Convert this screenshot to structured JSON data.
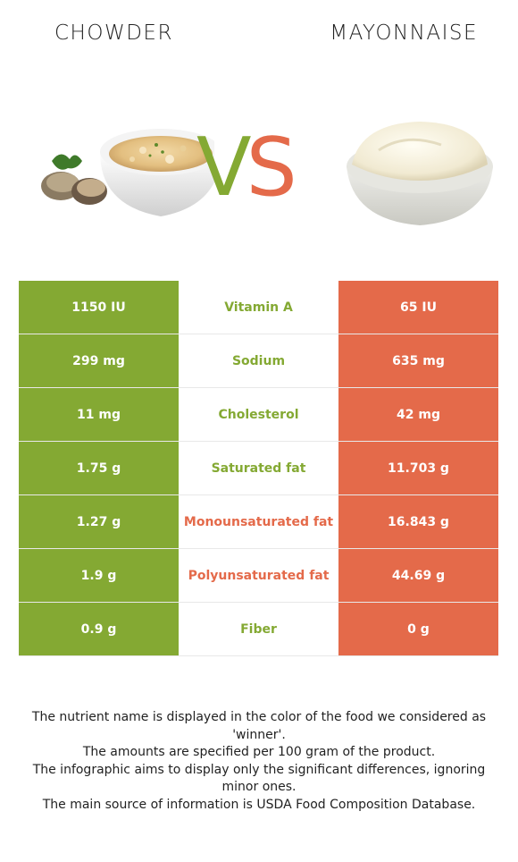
{
  "foods": {
    "left": "CHOWDER",
    "right": "MAYONNAISE"
  },
  "vs": {
    "v": "V",
    "s": "S"
  },
  "colors": {
    "left_winner": "#84a933",
    "right_winner": "#e46a4a"
  },
  "nutrients": [
    {
      "name": "Vitamin A",
      "left": "1150 IU",
      "right": "65 IU",
      "winner": "left"
    },
    {
      "name": "Sodium",
      "left": "299 mg",
      "right": "635 mg",
      "winner": "left"
    },
    {
      "name": "Cholesterol",
      "left": "11 mg",
      "right": "42 mg",
      "winner": "left"
    },
    {
      "name": "Saturated fat",
      "left": "1.75 g",
      "right": "11.703 g",
      "winner": "left"
    },
    {
      "name": "Monounsaturated fat",
      "left": "1.27 g",
      "right": "16.843 g",
      "winner": "right"
    },
    {
      "name": "Polyunsaturated fat",
      "left": "1.9 g",
      "right": "44.69 g",
      "winner": "right"
    },
    {
      "name": "Fiber",
      "left": "0.9 g",
      "right": "0 g",
      "winner": "left"
    }
  ],
  "notes": [
    "The nutrient name is displayed in the color of the food we considered as 'winner'.",
    "The amounts are specified per 100 gram of the product.",
    "The infographic aims to display only the significant differences, ignoring minor ones.",
    "The main source of information is USDA Food Composition Database."
  ]
}
